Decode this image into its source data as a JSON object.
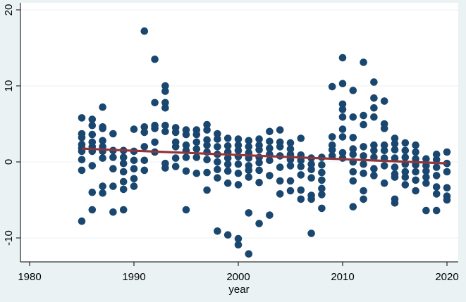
{
  "chart_data": {
    "type": "scatter",
    "xlabel": "year",
    "ylabel": "",
    "xlim": [
      1978,
      2021
    ],
    "ylim": [
      -13,
      21
    ],
    "xticks": [
      1980,
      1990,
      2000,
      2010,
      2020
    ],
    "yticks": [
      -10,
      0,
      10,
      20
    ],
    "grid": "horizontal",
    "colors": {
      "background": "#eaf2f3",
      "plot": "#ffffff",
      "points": "#1a476f",
      "fit": "#90353b",
      "grid": "#eaf2f3"
    },
    "series": [
      {
        "type": "scatter",
        "points": [
          [
            1985,
            5.8
          ],
          [
            1985,
            3.7
          ],
          [
            1985,
            3.2
          ],
          [
            1985,
            2.3
          ],
          [
            1985,
            1.8
          ],
          [
            1985,
            1.4
          ],
          [
            1985,
            0.3
          ],
          [
            1985,
            -1.1
          ],
          [
            1985,
            -7.8
          ],
          [
            1986,
            5.6
          ],
          [
            1986,
            4.8
          ],
          [
            1986,
            3.6
          ],
          [
            1986,
            2.6
          ],
          [
            1986,
            2.0
          ],
          [
            1986,
            1.4
          ],
          [
            1986,
            -0.5
          ],
          [
            1986,
            -4.0
          ],
          [
            1986,
            -6.3
          ],
          [
            1987,
            7.2
          ],
          [
            1987,
            4.6
          ],
          [
            1987,
            4.4
          ],
          [
            1987,
            2.8
          ],
          [
            1987,
            2.0
          ],
          [
            1987,
            1.4
          ],
          [
            1987,
            0.5
          ],
          [
            1987,
            -3.2
          ],
          [
            1987,
            -4.1
          ],
          [
            1988,
            3.7
          ],
          [
            1988,
            1.5
          ],
          [
            1988,
            0.6
          ],
          [
            1988,
            -0.9
          ],
          [
            1988,
            -3.2
          ],
          [
            1988,
            -6.6
          ],
          [
            1989,
            1.5
          ],
          [
            1989,
            0.6
          ],
          [
            1989,
            -0.2
          ],
          [
            1989,
            -1.3
          ],
          [
            1989,
            -2.6
          ],
          [
            1989,
            -3.6
          ],
          [
            1989,
            -6.3
          ],
          [
            1990,
            4.3
          ],
          [
            1990,
            1.4
          ],
          [
            1990,
            0.2
          ],
          [
            1990,
            -0.9
          ],
          [
            1990,
            -2.2
          ],
          [
            1990,
            -3.2
          ],
          [
            1991,
            17.2
          ],
          [
            1991,
            4.6
          ],
          [
            1991,
            3.9
          ],
          [
            1991,
            2.0
          ],
          [
            1991,
            0.2
          ],
          [
            1991,
            -1.1
          ],
          [
            1992,
            13.5
          ],
          [
            1992,
            7.8
          ],
          [
            1992,
            4.8
          ],
          [
            1992,
            4.4
          ],
          [
            1992,
            2.6
          ],
          [
            1992,
            1.3
          ],
          [
            1993,
            10.0
          ],
          [
            1993,
            9.3
          ],
          [
            1993,
            7.8
          ],
          [
            1993,
            7.1
          ],
          [
            1993,
            4.8
          ],
          [
            1993,
            4.0
          ],
          [
            1993,
            -0.2
          ],
          [
            1993,
            -0.8
          ],
          [
            1994,
            4.5
          ],
          [
            1994,
            3.9
          ],
          [
            1994,
            2.6
          ],
          [
            1994,
            2.0
          ],
          [
            1994,
            0.5
          ],
          [
            1994,
            -0.6
          ],
          [
            1995,
            4.2
          ],
          [
            1995,
            3.6
          ],
          [
            1995,
            2.2
          ],
          [
            1995,
            1.5
          ],
          [
            1995,
            0.6
          ],
          [
            1995,
            -1.2
          ],
          [
            1995,
            -6.3
          ],
          [
            1996,
            4.2
          ],
          [
            1996,
            3.6
          ],
          [
            1996,
            2.6
          ],
          [
            1996,
            1.7
          ],
          [
            1996,
            0.6
          ],
          [
            1996,
            -1.5
          ],
          [
            1997,
            4.9
          ],
          [
            1997,
            4.2
          ],
          [
            1997,
            2.9
          ],
          [
            1997,
            2.2
          ],
          [
            1997,
            1.3
          ],
          [
            1997,
            0.3
          ],
          [
            1997,
            -1.4
          ],
          [
            1997,
            -3.7
          ],
          [
            1998,
            3.7
          ],
          [
            1998,
            3.0
          ],
          [
            1998,
            2.0
          ],
          [
            1998,
            1.0
          ],
          [
            1998,
            0.0
          ],
          [
            1998,
            -1.0
          ],
          [
            1998,
            -2.1
          ],
          [
            1998,
            -9.1
          ],
          [
            1999,
            3.1
          ],
          [
            1999,
            2.1
          ],
          [
            1999,
            1.3
          ],
          [
            1999,
            0.5
          ],
          [
            1999,
            -0.3
          ],
          [
            1999,
            -1.2
          ],
          [
            1999,
            -2.8
          ],
          [
            1999,
            -9.6
          ],
          [
            2000,
            3.0
          ],
          [
            2000,
            2.2
          ],
          [
            2000,
            1.5
          ],
          [
            2000,
            0.7
          ],
          [
            2000,
            -0.3
          ],
          [
            2000,
            -1.5
          ],
          [
            2000,
            -3.0
          ],
          [
            2000,
            -10.1
          ],
          [
            2000,
            -10.9
          ],
          [
            2001,
            2.8
          ],
          [
            2001,
            2.0
          ],
          [
            2001,
            1.2
          ],
          [
            2001,
            0.5
          ],
          [
            2001,
            -0.5
          ],
          [
            2001,
            -1.1
          ],
          [
            2001,
            -2.0
          ],
          [
            2001,
            -6.7
          ],
          [
            2001,
            -12.1
          ],
          [
            2002,
            3.0
          ],
          [
            2002,
            2.2
          ],
          [
            2002,
            1.6
          ],
          [
            2002,
            0.6
          ],
          [
            2002,
            -0.1
          ],
          [
            2002,
            -1.1
          ],
          [
            2002,
            -2.7
          ],
          [
            2002,
            -8.1
          ],
          [
            2003,
            4.0
          ],
          [
            2003,
            2.7
          ],
          [
            2003,
            1.8
          ],
          [
            2003,
            1.0
          ],
          [
            2003,
            0.2
          ],
          [
            2003,
            -1.8
          ],
          [
            2003,
            -7.0
          ],
          [
            2004,
            4.2
          ],
          [
            2004,
            2.6
          ],
          [
            2004,
            2.0
          ],
          [
            2004,
            0.8
          ],
          [
            2004,
            -0.7
          ],
          [
            2004,
            -2.5
          ],
          [
            2004,
            -4.2
          ],
          [
            2005,
            2.5
          ],
          [
            2005,
            1.7
          ],
          [
            2005,
            1.0
          ],
          [
            2005,
            0.3
          ],
          [
            2005,
            -0.5
          ],
          [
            2005,
            -2.5
          ],
          [
            2005,
            -3.8
          ],
          [
            2006,
            3.1
          ],
          [
            2006,
            0.9
          ],
          [
            2006,
            0.2
          ],
          [
            2006,
            -0.6
          ],
          [
            2006,
            -1.7
          ],
          [
            2006,
            -3.7
          ],
          [
            2006,
            -4.9
          ],
          [
            2007,
            0.5
          ],
          [
            2007,
            -0.3
          ],
          [
            2007,
            -1.0
          ],
          [
            2007,
            -2.1
          ],
          [
            2007,
            -4.4
          ],
          [
            2007,
            -4.9
          ],
          [
            2007,
            -9.4
          ],
          [
            2008,
            0.6
          ],
          [
            2008,
            -0.4
          ],
          [
            2008,
            -1.4
          ],
          [
            2008,
            -2.4
          ],
          [
            2008,
            -3.5
          ],
          [
            2008,
            -4.3
          ],
          [
            2008,
            -6.1
          ],
          [
            2009,
            9.9
          ],
          [
            2009,
            3.3
          ],
          [
            2009,
            2.2
          ],
          [
            2009,
            1.6
          ],
          [
            2009,
            0.8
          ],
          [
            2010,
            13.7
          ],
          [
            2010,
            10.3
          ],
          [
            2010,
            7.6
          ],
          [
            2010,
            6.9
          ],
          [
            2010,
            5.9
          ],
          [
            2010,
            4.3
          ],
          [
            2010,
            3.3
          ],
          [
            2010,
            1.2
          ],
          [
            2010,
            0.5
          ],
          [
            2011,
            9.4
          ],
          [
            2011,
            5.9
          ],
          [
            2011,
            3.2
          ],
          [
            2011,
            1.7
          ],
          [
            2011,
            1.0
          ],
          [
            2011,
            0.0
          ],
          [
            2011,
            -1.3
          ],
          [
            2011,
            -2.5
          ],
          [
            2011,
            -5.9
          ],
          [
            2012,
            13.1
          ],
          [
            2012,
            6.1
          ],
          [
            2012,
            4.9
          ],
          [
            2012,
            2.0
          ],
          [
            2012,
            0.8
          ],
          [
            2012,
            -0.3
          ],
          [
            2012,
            -1.5
          ],
          [
            2012,
            -3.8
          ],
          [
            2012,
            -4.9
          ],
          [
            2013,
            10.5
          ],
          [
            2013,
            8.4
          ],
          [
            2013,
            7.1
          ],
          [
            2013,
            5.9
          ],
          [
            2013,
            2.2
          ],
          [
            2013,
            1.5
          ],
          [
            2013,
            0.6
          ],
          [
            2013,
            -0.9
          ],
          [
            2013,
            -1.8
          ],
          [
            2014,
            8.0
          ],
          [
            2014,
            5.0
          ],
          [
            2014,
            4.4
          ],
          [
            2014,
            2.2
          ],
          [
            2014,
            1.5
          ],
          [
            2014,
            0.5
          ],
          [
            2014,
            -0.5
          ],
          [
            2014,
            -2.8
          ],
          [
            2015,
            3.1
          ],
          [
            2015,
            2.4
          ],
          [
            2015,
            1.6
          ],
          [
            2015,
            0.5
          ],
          [
            2015,
            -0.7
          ],
          [
            2015,
            -1.6
          ],
          [
            2015,
            -2.0
          ],
          [
            2015,
            -4.9
          ],
          [
            2015,
            -5.4
          ],
          [
            2016,
            2.5
          ],
          [
            2016,
            1.5
          ],
          [
            2016,
            0.6
          ],
          [
            2016,
            -0.3
          ],
          [
            2016,
            -1.3
          ],
          [
            2016,
            -2.0
          ],
          [
            2016,
            -3.0
          ],
          [
            2017,
            2.2
          ],
          [
            2017,
            1.3
          ],
          [
            2017,
            0.4
          ],
          [
            2017,
            -0.4
          ],
          [
            2017,
            -1.3
          ],
          [
            2017,
            -2.4
          ],
          [
            2017,
            -3.8
          ],
          [
            2018,
            0.4
          ],
          [
            2018,
            -0.5
          ],
          [
            2018,
            -1.2
          ],
          [
            2018,
            -2.0
          ],
          [
            2018,
            -2.8
          ],
          [
            2018,
            -6.4
          ],
          [
            2019,
            1.0
          ],
          [
            2019,
            0.3
          ],
          [
            2019,
            -0.7
          ],
          [
            2019,
            -1.8
          ],
          [
            2019,
            -3.3
          ],
          [
            2019,
            -4.2
          ],
          [
            2019,
            -6.4
          ],
          [
            2020,
            1.3
          ],
          [
            2020,
            -0.2
          ],
          [
            2020,
            -1.3
          ],
          [
            2020,
            -3.4
          ],
          [
            2020,
            -4.5
          ],
          [
            2020,
            -5.0
          ]
        ]
      },
      {
        "type": "line",
        "points": [
          [
            1985,
            1.75
          ],
          [
            2020,
            -0.2
          ]
        ]
      }
    ]
  }
}
